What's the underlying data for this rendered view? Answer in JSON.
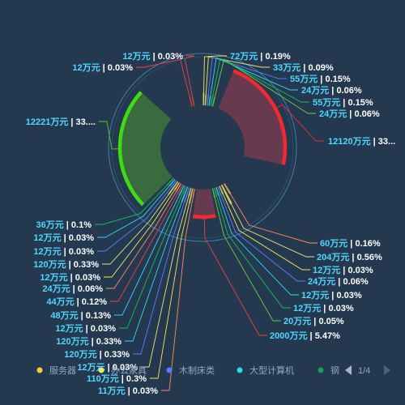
{
  "chart_data": {
    "type": "pie",
    "subtype": "rose",
    "colors": {
      "background": "#243950",
      "big_green": "#3a6e3c",
      "big_green_edge": "#3fdc14",
      "big_red": "#6c3a4e",
      "big_red_edge": "#f02a30",
      "mid_red": "#6c3a4e",
      "mid_red_edge": "#f02a30"
    },
    "slices": [
      {
        "value": "12120万元",
        "percent": "33...",
        "numeric": 12120,
        "color": "#f02a30",
        "line": "#f02a30"
      },
      {
        "value": "60万元",
        "percent": "0.16%",
        "numeric": 60,
        "color": "#f0b05a",
        "line": "#ff8a5c"
      },
      {
        "value": "204万元",
        "percent": "0.56%",
        "numeric": 204,
        "color": "#e8e870",
        "line": "#e8e870"
      },
      {
        "value": "12万元",
        "percent": "0.03%",
        "numeric": 12,
        "color": "#ffe34f",
        "line": "#ffe34f"
      },
      {
        "value": "24万元",
        "percent": "0.06%",
        "numeric": 24,
        "color": "#5a7cff",
        "line": "#5a7cff"
      },
      {
        "value": "12万元",
        "percent": "0.03%",
        "numeric": 12,
        "color": "#2fd8f0",
        "line": "#2fd8f0"
      },
      {
        "value": "12万元",
        "percent": "0.03%",
        "numeric": 12,
        "color": "#18c050",
        "line": "#18c050"
      },
      {
        "value": "20万元",
        "percent": "0.05%",
        "numeric": 20,
        "color": "#66d044",
        "line": "#66d044"
      },
      {
        "value": "2000万元",
        "percent": "5.47%",
        "numeric": 2000,
        "color": "#f02a30",
        "line": "#f04040"
      },
      {
        "value": "11万元",
        "percent": "0.03%",
        "numeric": 11,
        "color": "#ff8a5c",
        "line": "#ff8a5c"
      },
      {
        "value": "110万元",
        "percent": "0.3%",
        "numeric": 110,
        "color": "#ffe34f",
        "line": "#ffe34f"
      },
      {
        "value": "12万元",
        "percent": "0.03%",
        "numeric": 12,
        "color": "#e8e870",
        "line": "#e8e870"
      },
      {
        "value": "120万元",
        "percent": "0.33%",
        "numeric": 120,
        "color": "#5a7cff",
        "line": "#5a7cff"
      },
      {
        "value": "120万元",
        "percent": "0.33%",
        "numeric": 120,
        "color": "#2fd8f0",
        "line": "#2fd8f0"
      },
      {
        "value": "12万元",
        "percent": "0.03%",
        "numeric": 12,
        "color": "#18c050",
        "line": "#18c050"
      },
      {
        "value": "48万元",
        "percent": "0.13%",
        "numeric": 48,
        "color": "#2fd8f0",
        "line": "#2fd8f0"
      },
      {
        "value": "44万元",
        "percent": "0.12%",
        "numeric": 44,
        "color": "#f04040",
        "line": "#f04040"
      },
      {
        "value": "24万元",
        "percent": "0.06%",
        "numeric": 24,
        "color": "#ff8a5c",
        "line": "#ff8a5c"
      },
      {
        "value": "12万元",
        "percent": "0.03%",
        "numeric": 12,
        "color": "#ffe34f",
        "line": "#ffe34f"
      },
      {
        "value": "120万元",
        "percent": "0.33%",
        "numeric": 120,
        "color": "#e8e870",
        "line": "#e8e870"
      },
      {
        "value": "12万元",
        "percent": "0.03%",
        "numeric": 12,
        "color": "#5a7cff",
        "line": "#5a7cff"
      },
      {
        "value": "12万元",
        "percent": "0.03%",
        "numeric": 12,
        "color": "#2fd8f0",
        "line": "#2fd8f0"
      },
      {
        "value": "36万元",
        "percent": "0.1%",
        "numeric": 36,
        "color": "#18c050",
        "line": "#18c050"
      },
      {
        "value": "12221万元",
        "percent": "33....",
        "numeric": 12221,
        "color": "#3fdc14",
        "line": "#3fdc14"
      },
      {
        "value": "12万元",
        "percent": "0.03%",
        "numeric": 12,
        "color": "#f04040",
        "line": "#f04040"
      },
      {
        "value": "12万元",
        "percent": "0.03%",
        "numeric": 12,
        "color": "#f04040",
        "line": "#f04040"
      },
      {
        "value": "72万元",
        "percent": "0.19%",
        "numeric": 72,
        "color": "#ffe34f",
        "line": "#ffe34f"
      },
      {
        "value": "33万元",
        "percent": "0.09%",
        "numeric": 33,
        "color": "#e8e870",
        "line": "#e8e870"
      },
      {
        "value": "55万元",
        "percent": "0.15%",
        "numeric": 55,
        "color": "#5a7cff",
        "line": "#5a7cff"
      },
      {
        "value": "24万元",
        "percent": "0.06%",
        "numeric": 24,
        "color": "#2fd8f0",
        "line": "#2fd8f0"
      },
      {
        "value": "55万元",
        "percent": "0.15%",
        "numeric": 55,
        "color": "#18c050",
        "line": "#18c050"
      },
      {
        "value": "24万元",
        "percent": "0.06%",
        "numeric": 24,
        "color": "#66d044",
        "line": "#66d044"
      }
    ],
    "legend": {
      "placement": "bottom",
      "items": [
        {
          "name": "服务器",
          "color": "#ffcc33"
        },
        {
          "name": "办公家具",
          "color": "#e8e870"
        },
        {
          "name": "木制床类",
          "color": "#5a7cff"
        },
        {
          "name": "大型计算机",
          "color": "#2fd8f0"
        },
        {
          "name": "钢",
          "color": "#18a050"
        }
      ],
      "pager": {
        "prev_icon": "triangle-left",
        "next_icon": "triangle-right",
        "page": "1/4"
      }
    },
    "title": "",
    "ring_circle": true
  }
}
